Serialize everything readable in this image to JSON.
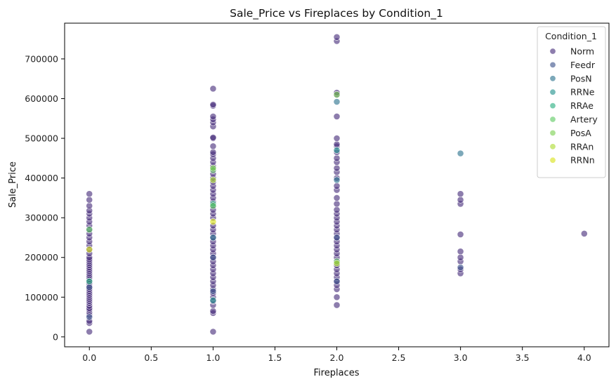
{
  "chart_data": {
    "type": "scatter",
    "title": "Sale_Price vs Fireplaces by Condition_1",
    "xlabel": "Fireplaces",
    "ylabel": "Sale_Price",
    "xlim": [
      -0.2,
      4.2
    ],
    "ylim": [
      -25000,
      790000
    ],
    "x_ticks": [
      "0.0",
      "0.5",
      "1.0",
      "1.5",
      "2.0",
      "2.5",
      "3.0",
      "3.5",
      "4.0"
    ],
    "y_ticks": [
      "0",
      "100000",
      "200000",
      "300000",
      "400000",
      "500000",
      "600000",
      "700000"
    ],
    "grid": false,
    "legend": {
      "title": "Condition_1",
      "placement": "top-right",
      "entries": [
        "Norm",
        "Feedr",
        "PosN",
        "RRNe",
        "RRAe",
        "Artery",
        "PosA",
        "RRAn",
        "RRNn"
      ]
    },
    "series": [
      {
        "name": "Norm",
        "color": "#472d7b",
        "points": [
          [
            0,
            13000
          ],
          [
            0,
            35000
          ],
          [
            0,
            40000
          ],
          [
            0,
            55000
          ],
          [
            0,
            62000
          ],
          [
            0,
            68000
          ],
          [
            0,
            72000
          ],
          [
            0,
            78000
          ],
          [
            0,
            85000
          ],
          [
            0,
            90000
          ],
          [
            0,
            95000
          ],
          [
            0,
            100000
          ],
          [
            0,
            105000
          ],
          [
            0,
            110000
          ],
          [
            0,
            115000
          ],
          [
            0,
            120000
          ],
          [
            0,
            125000
          ],
          [
            0,
            130000
          ],
          [
            0,
            135000
          ],
          [
            0,
            140000
          ],
          [
            0,
            145000
          ],
          [
            0,
            150000
          ],
          [
            0,
            155000
          ],
          [
            0,
            160000
          ],
          [
            0,
            165000
          ],
          [
            0,
            170000
          ],
          [
            0,
            175000
          ],
          [
            0,
            180000
          ],
          [
            0,
            185000
          ],
          [
            0,
            190000
          ],
          [
            0,
            195000
          ],
          [
            0,
            200000
          ],
          [
            0,
            210000
          ],
          [
            0,
            220000
          ],
          [
            0,
            230000
          ],
          [
            0,
            240000
          ],
          [
            0,
            250000
          ],
          [
            0,
            260000
          ],
          [
            0,
            270000
          ],
          [
            0,
            280000
          ],
          [
            0,
            290000
          ],
          [
            0,
            300000
          ],
          [
            0,
            310000
          ],
          [
            0,
            318000
          ],
          [
            0,
            330000
          ],
          [
            0,
            345000
          ],
          [
            0,
            360000
          ],
          [
            1,
            13000
          ],
          [
            1,
            60000
          ],
          [
            1,
            65000
          ],
          [
            1,
            80000
          ],
          [
            1,
            90000
          ],
          [
            1,
            100000
          ],
          [
            1,
            110000
          ],
          [
            1,
            120000
          ],
          [
            1,
            130000
          ],
          [
            1,
            140000
          ],
          [
            1,
            150000
          ],
          [
            1,
            160000
          ],
          [
            1,
            170000
          ],
          [
            1,
            180000
          ],
          [
            1,
            190000
          ],
          [
            1,
            200000
          ],
          [
            1,
            210000
          ],
          [
            1,
            220000
          ],
          [
            1,
            230000
          ],
          [
            1,
            240000
          ],
          [
            1,
            250000
          ],
          [
            1,
            260000
          ],
          [
            1,
            270000
          ],
          [
            1,
            280000
          ],
          [
            1,
            300000
          ],
          [
            1,
            310000
          ],
          [
            1,
            320000
          ],
          [
            1,
            330000
          ],
          [
            1,
            340000
          ],
          [
            1,
            350000
          ],
          [
            1,
            360000
          ],
          [
            1,
            370000
          ],
          [
            1,
            380000
          ],
          [
            1,
            390000
          ],
          [
            1,
            400000
          ],
          [
            1,
            410000
          ],
          [
            1,
            420000
          ],
          [
            1,
            430000
          ],
          [
            1,
            440000
          ],
          [
            1,
            450000
          ],
          [
            1,
            460000
          ],
          [
            1,
            465000
          ],
          [
            1,
            480000
          ],
          [
            1,
            500000
          ],
          [
            1,
            502000
          ],
          [
            1,
            530000
          ],
          [
            1,
            540000
          ],
          [
            1,
            548000
          ],
          [
            1,
            555000
          ],
          [
            1,
            582000
          ],
          [
            1,
            585000
          ],
          [
            1,
            625000
          ],
          [
            2,
            80000
          ],
          [
            2,
            100000
          ],
          [
            2,
            120000
          ],
          [
            2,
            130000
          ],
          [
            2,
            140000
          ],
          [
            2,
            150000
          ],
          [
            2,
            160000
          ],
          [
            2,
            170000
          ],
          [
            2,
            180000
          ],
          [
            2,
            190000
          ],
          [
            2,
            200000
          ],
          [
            2,
            210000
          ],
          [
            2,
            220000
          ],
          [
            2,
            230000
          ],
          [
            2,
            240000
          ],
          [
            2,
            250000
          ],
          [
            2,
            260000
          ],
          [
            2,
            270000
          ],
          [
            2,
            280000
          ],
          [
            2,
            290000
          ],
          [
            2,
            300000
          ],
          [
            2,
            310000
          ],
          [
            2,
            320000
          ],
          [
            2,
            335000
          ],
          [
            2,
            350000
          ],
          [
            2,
            370000
          ],
          [
            2,
            380000
          ],
          [
            2,
            400000
          ],
          [
            2,
            415000
          ],
          [
            2,
            425000
          ],
          [
            2,
            440000
          ],
          [
            2,
            450000
          ],
          [
            2,
            465000
          ],
          [
            2,
            480000
          ],
          [
            2,
            485000
          ],
          [
            2,
            500000
          ],
          [
            2,
            555000
          ],
          [
            2,
            610000
          ],
          [
            2,
            615000
          ],
          [
            2,
            745000
          ],
          [
            2,
            755000
          ],
          [
            3,
            160000
          ],
          [
            3,
            170000
          ],
          [
            3,
            190000
          ],
          [
            3,
            200000
          ],
          [
            3,
            215000
          ],
          [
            3,
            258000
          ],
          [
            3,
            335000
          ],
          [
            3,
            345000
          ],
          [
            3,
            360000
          ],
          [
            4,
            260000
          ]
        ]
      },
      {
        "name": "Feedr",
        "color": "#3b528b",
        "points": [
          [
            0,
            50000
          ],
          [
            0,
            125000
          ],
          [
            1,
            115000
          ],
          [
            1,
            200000
          ],
          [
            2,
            140000
          ],
          [
            2,
            250000
          ],
          [
            3,
            175000
          ]
        ]
      },
      {
        "name": "PosN",
        "color": "#2c728e",
        "points": [
          [
            1,
            250000
          ],
          [
            2,
            592000
          ],
          [
            2,
            395000
          ],
          [
            3,
            462000
          ]
        ]
      },
      {
        "name": "RRNe",
        "color": "#21918c",
        "points": [
          [
            1,
            92000
          ],
          [
            2,
            470000
          ]
        ]
      },
      {
        "name": "RRAe",
        "color": "#28ae80",
        "points": [
          [
            0,
            140000
          ],
          [
            1,
            335000
          ]
        ]
      },
      {
        "name": "Artery",
        "color": "#5ec962",
        "points": [
          [
            0,
            270000
          ],
          [
            1,
            420000
          ],
          [
            1,
            330000
          ],
          [
            2,
            190000
          ]
        ]
      },
      {
        "name": "PosA",
        "color": "#7ad151",
        "points": [
          [
            1,
            425000
          ],
          [
            2,
            610000
          ]
        ]
      },
      {
        "name": "RRAn",
        "color": "#addc30",
        "points": [
          [
            1,
            395000
          ],
          [
            2,
            185000
          ]
        ]
      },
      {
        "name": "RRNn",
        "color": "#d8e219",
        "points": [
          [
            0,
            220000
          ],
          [
            1,
            290000
          ]
        ]
      }
    ]
  }
}
